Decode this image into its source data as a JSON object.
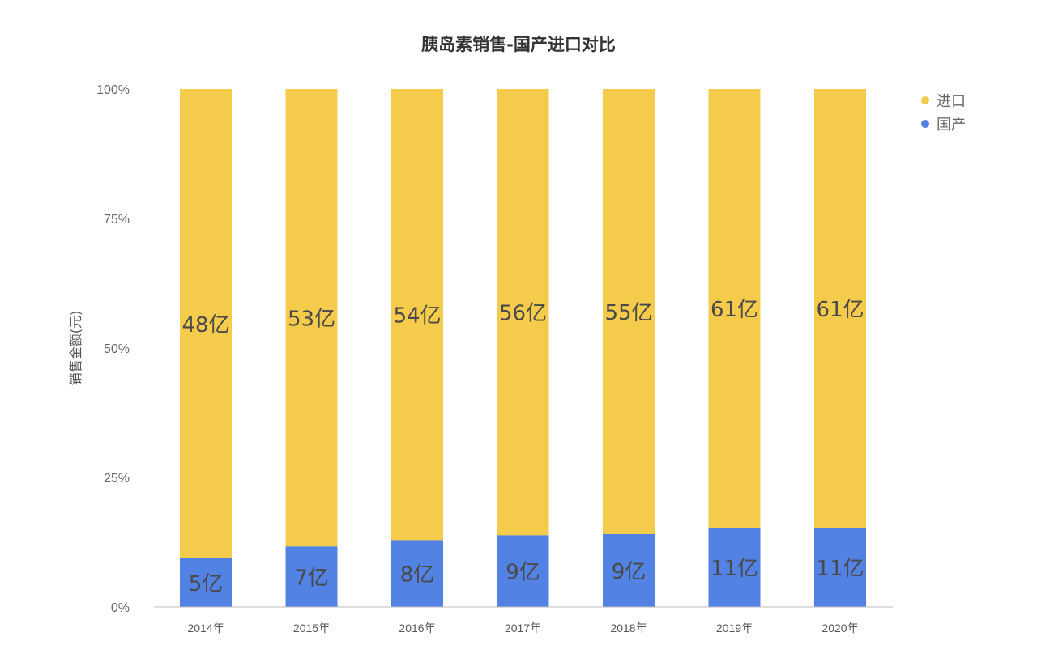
{
  "colors": {
    "imported": "#f5cb4b",
    "domestic": "#5182e4",
    "axis": "#bbbbbb"
  },
  "chart_data": {
    "type": "bar",
    "stacked": true,
    "normalized": true,
    "title": "胰岛素销售-国产进口对比",
    "xlabel": "",
    "ylabel": "销售金额(元)",
    "ylim": [
      0,
      100
    ],
    "y_ticks": [
      "0%",
      "25%",
      "50%",
      "75%",
      "100%"
    ],
    "y_tick_values": [
      0,
      25,
      50,
      75,
      100
    ],
    "categories": [
      "2014年",
      "2015年",
      "2016年",
      "2017年",
      "2018年",
      "2019年",
      "2020年"
    ],
    "legend_position": "top-right",
    "grid": false,
    "series": [
      {
        "name": "国产",
        "color": "#5182e4",
        "values": [
          5,
          7,
          8,
          9,
          9,
          11,
          11
        ],
        "labels": [
          "5亿",
          "7亿",
          "8亿",
          "9亿",
          "9亿",
          "11亿",
          "11亿"
        ]
      },
      {
        "name": "进口",
        "color": "#f5cb4b",
        "values": [
          48,
          53,
          54,
          56,
          55,
          61,
          61
        ],
        "labels": [
          "48亿",
          "53亿",
          "54亿",
          "56亿",
          "55亿",
          "61亿",
          "61亿"
        ]
      }
    ],
    "legend": [
      {
        "name": "进口",
        "color": "#f5cb4b"
      },
      {
        "name": "国产",
        "color": "#5182e4"
      }
    ]
  }
}
